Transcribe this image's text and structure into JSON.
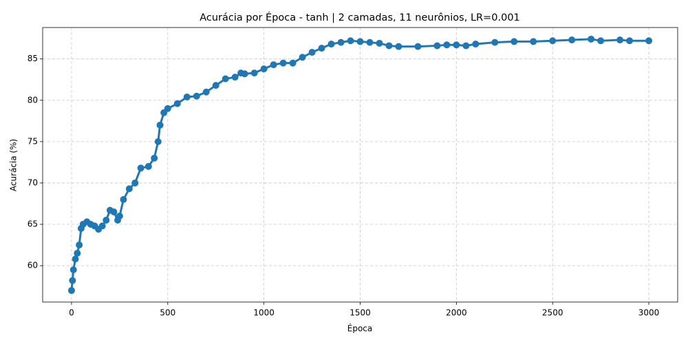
{
  "chart_data": {
    "type": "line",
    "title": "Acurácia por Época - tanh | 2 camadas, 11 neurônios, LR=0.001",
    "xlabel": "Época",
    "ylabel": "Acurácia (%)",
    "x": [
      0,
      5,
      10,
      20,
      30,
      40,
      50,
      60,
      80,
      100,
      120,
      140,
      160,
      180,
      200,
      220,
      240,
      250,
      270,
      300,
      330,
      360,
      400,
      430,
      450,
      460,
      480,
      500,
      550,
      600,
      650,
      700,
      750,
      800,
      850,
      880,
      900,
      950,
      1000,
      1050,
      1100,
      1150,
      1200,
      1250,
      1300,
      1350,
      1400,
      1450,
      1500,
      1550,
      1600,
      1650,
      1700,
      1800,
      1900,
      1950,
      2000,
      2050,
      2100,
      2200,
      2300,
      2400,
      2500,
      2600,
      2700,
      2750,
      2850,
      2900,
      3000
    ],
    "values": [
      57.0,
      58.2,
      59.5,
      60.8,
      61.5,
      62.5,
      64.5,
      65.0,
      65.3,
      65.0,
      64.8,
      64.4,
      64.8,
      65.5,
      66.7,
      66.5,
      65.5,
      66.0,
      68.0,
      69.3,
      70.0,
      71.8,
      72.0,
      73.0,
      75.0,
      77.0,
      78.5,
      79.0,
      79.6,
      80.4,
      80.5,
      81.0,
      81.8,
      82.6,
      82.8,
      83.3,
      83.2,
      83.3,
      83.8,
      84.3,
      84.5,
      84.5,
      85.2,
      85.8,
      86.3,
      86.8,
      87.0,
      87.2,
      87.1,
      87.0,
      86.9,
      86.6,
      86.5,
      86.5,
      86.6,
      86.7,
      86.7,
      86.6,
      86.8,
      87.0,
      87.1,
      87.1,
      87.2,
      87.3,
      87.4,
      87.2,
      87.3,
      87.2,
      87.2
    ],
    "color": "#1f77b4",
    "xlim": [
      -150,
      3150
    ],
    "xticks": [
      0,
      500,
      1000,
      1500,
      2000,
      2500,
      3000
    ],
    "ylim": [
      55.6,
      88.8
    ],
    "yticks": [
      60,
      65,
      70,
      75,
      80,
      85
    ],
    "grid": true
  }
}
